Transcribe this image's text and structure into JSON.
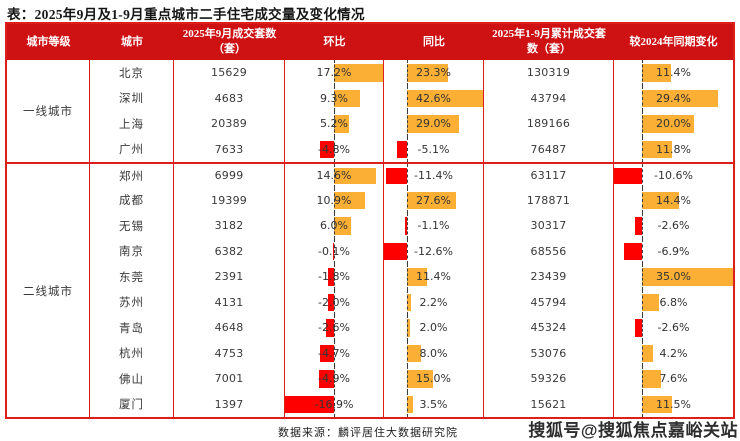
{
  "page": {
    "title": "表：2025年9月及1-9月重点城市二手住宅成交量及变化情况",
    "source_note": "数据来源：麟评居住大数据研究院",
    "watermark": "搜狐号@搜狐焦点嘉峪关站"
  },
  "colors": {
    "header_bg": "#ce1214",
    "table_border": "#dd1f1a",
    "bar_positive": "#fbaf34",
    "bar_negative": "#ff0000",
    "header_text": "#ffffff",
    "body_text": "#3a3a3a"
  },
  "chart_data": {
    "type": "table",
    "title": "2025年9月及1-9月重点城市二手住宅成交量及变化情况",
    "columns": [
      "城市等级",
      "城市",
      "2025年9月成交套数（套）",
      "环比",
      "同比",
      "2025年1-9月累计成交套数（套）",
      "较2024年同期变化"
    ],
    "bar_axes": {
      "mom": {
        "min": -16.9,
        "max": 17.2
      },
      "yoy": {
        "min": -12.6,
        "max": 42.6
      },
      "ytd_change": {
        "min": -10.6,
        "max": 35.0
      }
    },
    "groups": [
      {
        "tier": "一线城市",
        "rows": [
          {
            "city": "北京",
            "sep_sales": 15629,
            "mom_pct": 17.2,
            "yoy_pct": 23.3,
            "ytd_sales": 130319,
            "ytd_change_pct": 11.4
          },
          {
            "city": "深圳",
            "sep_sales": 4683,
            "mom_pct": 9.3,
            "yoy_pct": 42.6,
            "ytd_sales": 43794,
            "ytd_change_pct": 29.4
          },
          {
            "city": "上海",
            "sep_sales": 20389,
            "mom_pct": 5.2,
            "yoy_pct": 29.0,
            "ytd_sales": 189166,
            "ytd_change_pct": 20.0
          },
          {
            "city": "广州",
            "sep_sales": 7633,
            "mom_pct": -4.8,
            "yoy_pct": -5.1,
            "ytd_sales": 76487,
            "ytd_change_pct": 11.8
          }
        ]
      },
      {
        "tier": "二线城市",
        "rows": [
          {
            "city": "郑州",
            "sep_sales": 6999,
            "mom_pct": 14.6,
            "yoy_pct": -11.4,
            "ytd_sales": 63117,
            "ytd_change_pct": -10.6
          },
          {
            "city": "成都",
            "sep_sales": 19399,
            "mom_pct": 10.9,
            "yoy_pct": 27.6,
            "ytd_sales": 178871,
            "ytd_change_pct": 14.4
          },
          {
            "city": "无锡",
            "sep_sales": 3182,
            "mom_pct": 6.0,
            "yoy_pct": -1.1,
            "ytd_sales": 30317,
            "ytd_change_pct": -2.6
          },
          {
            "city": "南京",
            "sep_sales": 6382,
            "mom_pct": -0.1,
            "yoy_pct": -12.6,
            "ytd_sales": 68556,
            "ytd_change_pct": -6.9
          },
          {
            "city": "东莞",
            "sep_sales": 2391,
            "mom_pct": -1.8,
            "yoy_pct": 11.4,
            "ytd_sales": 23439,
            "ytd_change_pct": 35.0
          },
          {
            "city": "苏州",
            "sep_sales": 4131,
            "mom_pct": -2.0,
            "yoy_pct": 2.2,
            "ytd_sales": 45794,
            "ytd_change_pct": 6.8
          },
          {
            "city": "青岛",
            "sep_sales": 4648,
            "mom_pct": -2.6,
            "yoy_pct": 2.0,
            "ytd_sales": 45324,
            "ytd_change_pct": -2.6
          },
          {
            "city": "杭州",
            "sep_sales": 4753,
            "mom_pct": -4.7,
            "yoy_pct": 8.0,
            "ytd_sales": 53076,
            "ytd_change_pct": 4.2
          },
          {
            "city": "佛山",
            "sep_sales": 7001,
            "mom_pct": -4.9,
            "yoy_pct": 15.0,
            "ytd_sales": 59326,
            "ytd_change_pct": 7.6
          },
          {
            "city": "厦门",
            "sep_sales": 1397,
            "mom_pct": -16.9,
            "yoy_pct": 3.5,
            "ytd_sales": 15621,
            "ytd_change_pct": 11.5
          }
        ]
      }
    ]
  }
}
